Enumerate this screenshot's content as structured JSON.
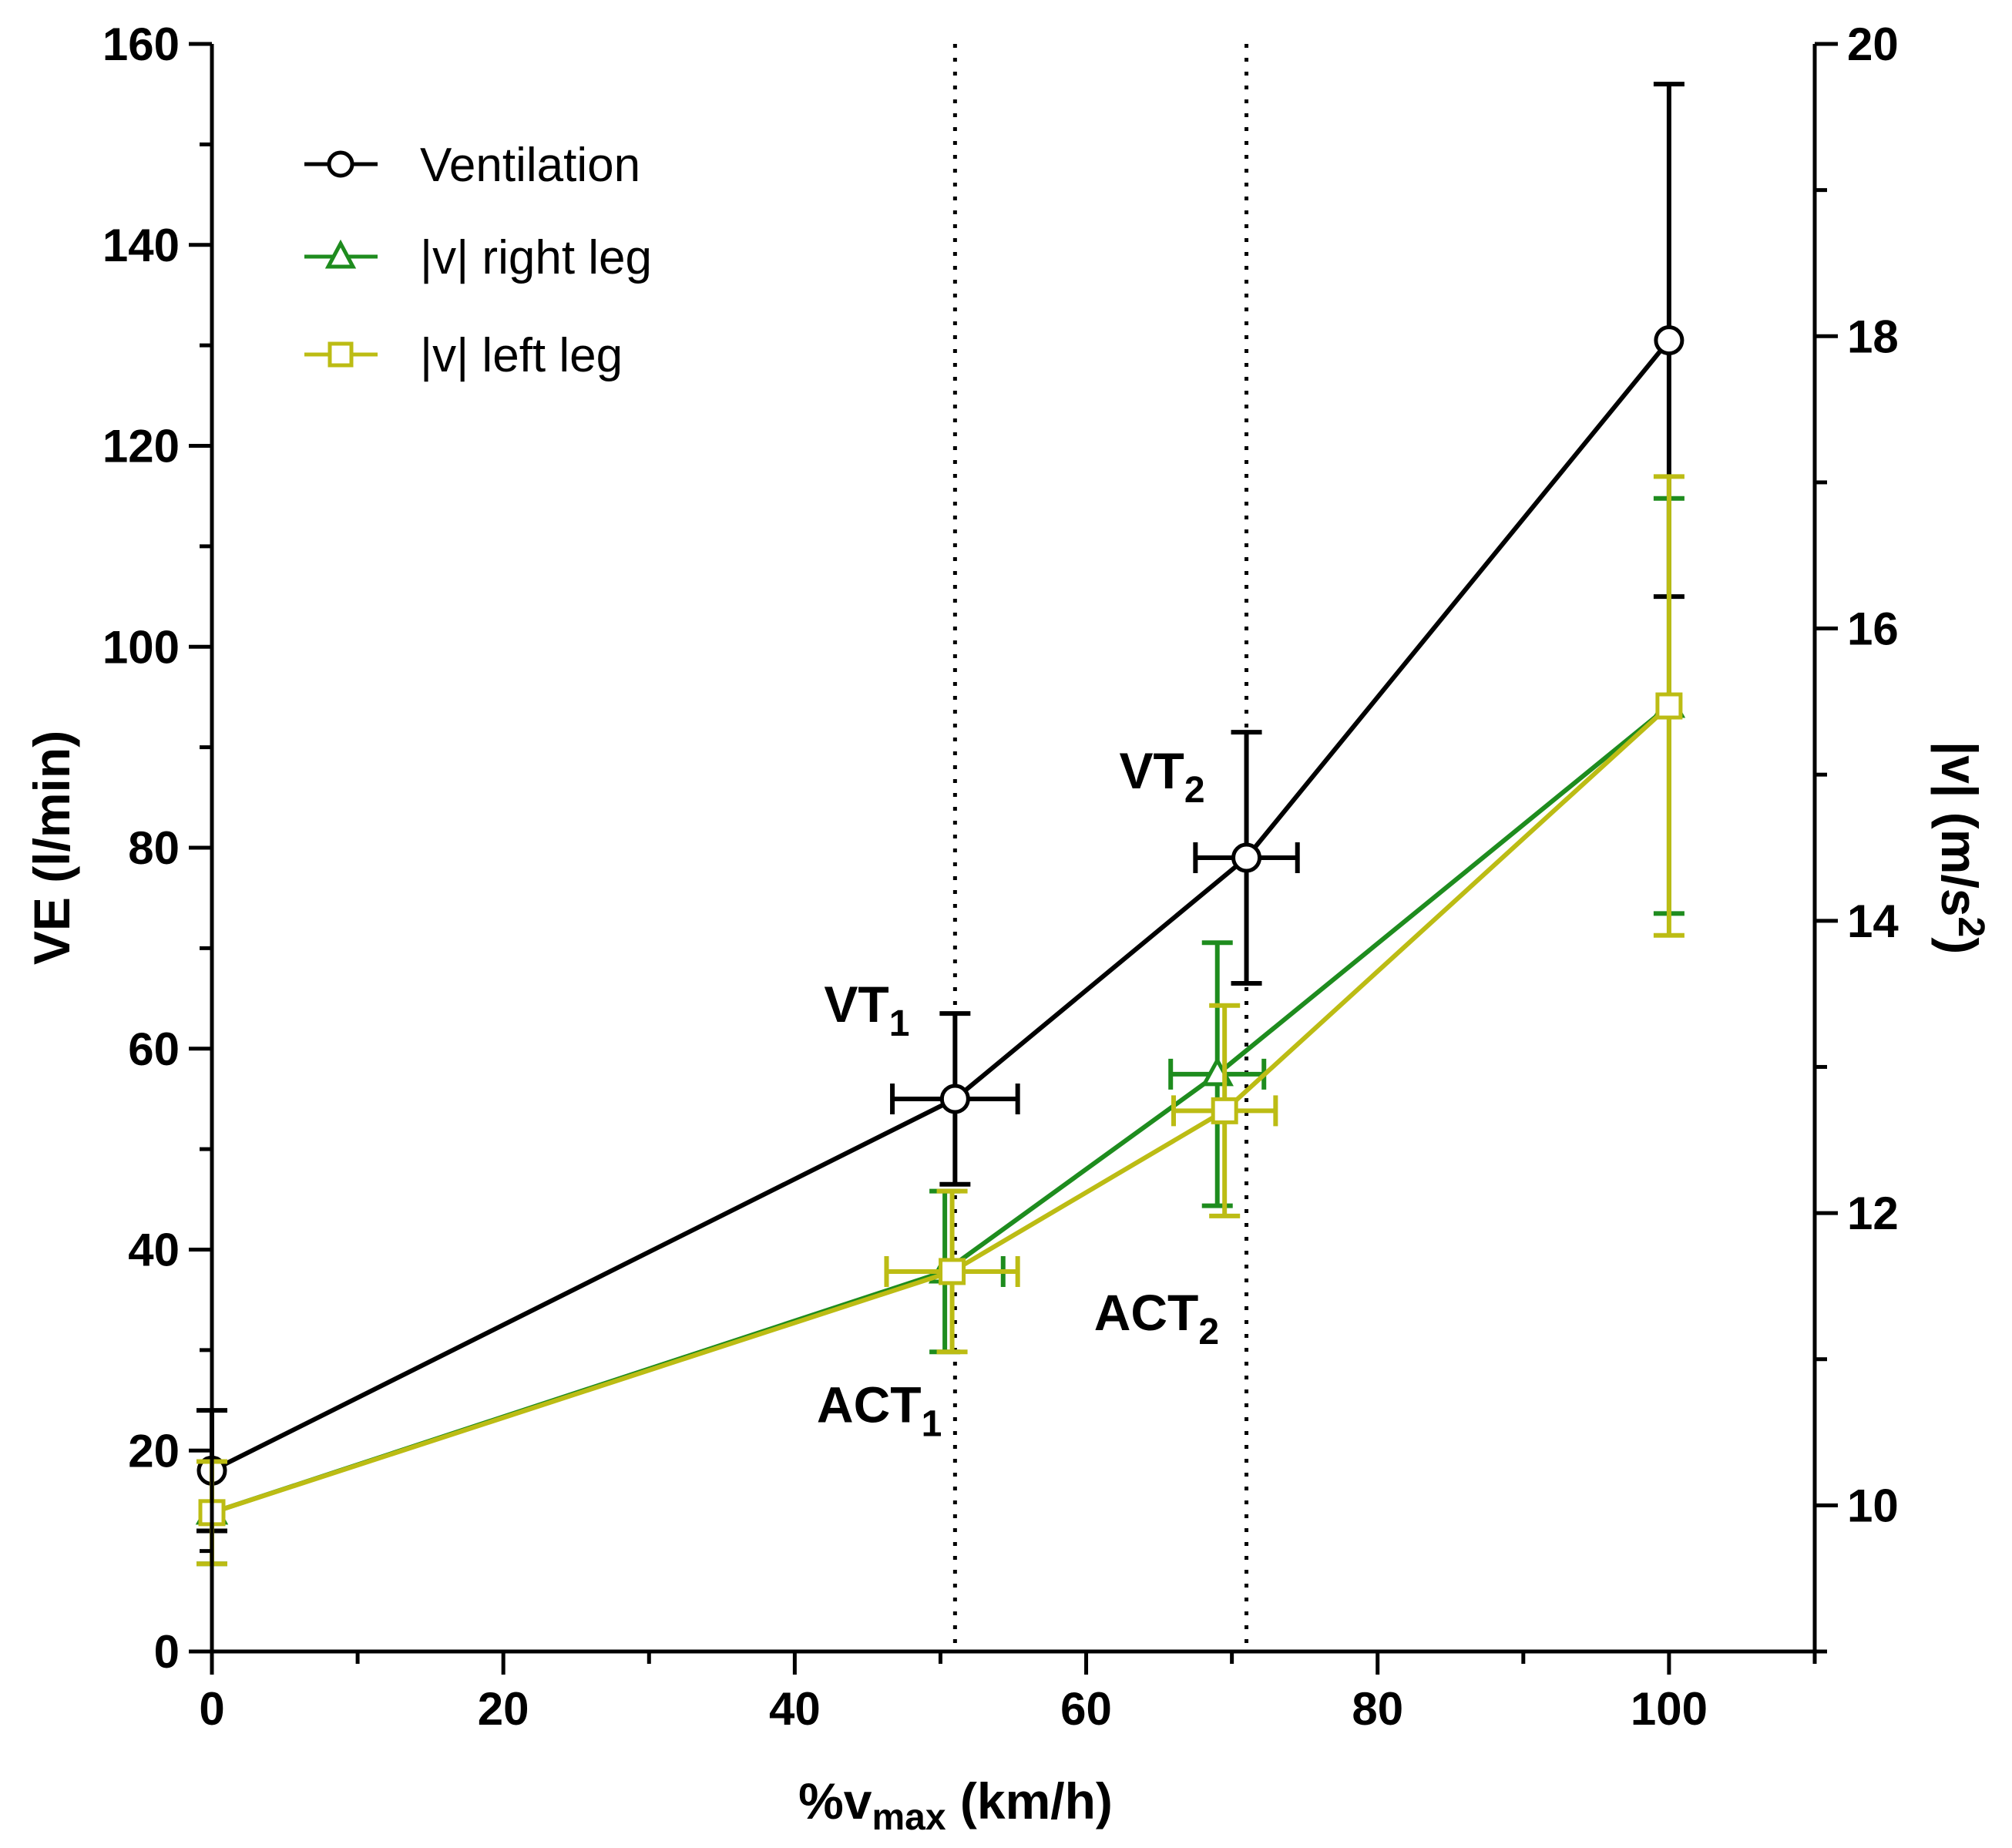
{
  "chart_data": {
    "type": "line",
    "title": "",
    "xlabel_main": "%v",
    "xlabel_sub": "max",
    "xlabel_rest": " (km/h)",
    "ylabel_left": "VE (l/min)",
    "ylabel_right_main": "|v| (m/s",
    "ylabel_right_sup": "2",
    "ylabel_right_end": ")",
    "xlim": [
      0,
      110
    ],
    "ylim_left": [
      0,
      160
    ],
    "ylim_right": [
      9,
      20
    ],
    "x_ticks": [
      0,
      20,
      40,
      60,
      80,
      100
    ],
    "x_tick_labels": [
      "0",
      "20",
      "40",
      "60",
      "80",
      "100"
    ],
    "y_left_ticks": [
      0,
      20,
      40,
      60,
      80,
      100,
      120,
      140,
      160
    ],
    "y_left_tick_labels": [
      "0",
      "20",
      "40",
      "60",
      "80",
      "100",
      "120",
      "140",
      "160"
    ],
    "y_right_ticks": [
      10,
      12,
      14,
      16,
      18,
      20
    ],
    "y_right_tick_labels": [
      "10",
      "12",
      "14",
      "16",
      "18",
      "20"
    ],
    "threshold_lines_x": [
      51,
      71
    ],
    "legend_position": "top-left",
    "series": [
      {
        "name": "Ventilation",
        "axis": "left",
        "marker": "circle",
        "color": "#000000",
        "points": [
          {
            "x": 0,
            "y": 18,
            "yerr": 6,
            "xerr": 0
          },
          {
            "x": 51,
            "y": 55,
            "yerr": 8.5,
            "xerr": 4.3
          },
          {
            "x": 71,
            "y": 79,
            "yerr": 12.5,
            "xerr": 3.5
          },
          {
            "x": 100,
            "y": 130.5,
            "yerr": 25.5,
            "xerr": 0
          }
        ]
      },
      {
        "name": "|v| right leg",
        "axis": "right",
        "marker": "triangle",
        "color": "#1e8c1e",
        "points": [
          {
            "x": 0,
            "y": 9.95,
            "yerr": 0.35,
            "xerr": 0
          },
          {
            "x": 50.3,
            "y": 11.6,
            "yerr": 0.55,
            "xerr": 4.0
          },
          {
            "x": 69,
            "y": 12.95,
            "yerr": 0.9,
            "xerr": 3.2
          },
          {
            "x": 100,
            "y": 15.47,
            "yerr": 1.42,
            "xerr": 0
          }
        ]
      },
      {
        "name": "|v| left leg",
        "axis": "right",
        "marker": "square",
        "color": "#bcbc14",
        "points": [
          {
            "x": 0,
            "y": 9.95,
            "yerr": 0.35,
            "xerr": 0
          },
          {
            "x": 50.8,
            "y": 11.6,
            "yerr": 0.55,
            "xerr": 4.5
          },
          {
            "x": 69.5,
            "y": 12.7,
            "yerr": 0.72,
            "xerr": 3.5
          },
          {
            "x": 100,
            "y": 15.47,
            "yerr": 1.57,
            "xerr": 0
          }
        ]
      }
    ],
    "annotations": [
      {
        "main": "VT",
        "sub": "1",
        "x": 51,
        "y_left": 55
      },
      {
        "main": "VT",
        "sub": "2",
        "x": 71,
        "y_left": 79
      },
      {
        "main": "ACT",
        "sub": "1",
        "x": 50.5,
        "y_left": 37
      },
      {
        "main": "ACT",
        "sub": "2",
        "x": 69,
        "y_left": 55
      }
    ]
  }
}
